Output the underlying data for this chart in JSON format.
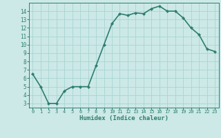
{
  "x": [
    0,
    1,
    2,
    3,
    4,
    5,
    6,
    7,
    8,
    9,
    10,
    11,
    12,
    13,
    14,
    15,
    16,
    17,
    18,
    19,
    20,
    21,
    22,
    23
  ],
  "y": [
    6.5,
    5.0,
    3.0,
    3.0,
    4.5,
    5.0,
    5.0,
    5.0,
    7.5,
    10.0,
    12.5,
    13.7,
    13.5,
    13.8,
    13.7,
    14.3,
    14.6,
    14.0,
    14.0,
    13.2,
    12.0,
    11.2,
    9.5,
    9.2
  ],
  "line_color": "#2e7d6e",
  "marker": "D",
  "marker_size": 2.2,
  "bg_color": "#cce9e7",
  "grid_color": "#a8d4d1",
  "tick_color": "#2e7d6e",
  "xlabel": "Humidex (Indice chaleur)",
  "ylim": [
    2.5,
    15.0
  ],
  "xlim": [
    -0.5,
    23.5
  ],
  "yticks": [
    3,
    4,
    5,
    6,
    7,
    8,
    9,
    10,
    11,
    12,
    13,
    14
  ],
  "xticks": [
    0,
    1,
    2,
    3,
    4,
    5,
    6,
    7,
    8,
    9,
    10,
    11,
    12,
    13,
    14,
    15,
    16,
    17,
    18,
    19,
    20,
    21,
    22,
    23
  ],
  "xtick_labels": [
    "0",
    "1",
    "2",
    "3",
    "4",
    "5",
    "6",
    "7",
    "8",
    "9",
    "10",
    "11",
    "12",
    "13",
    "14",
    "15",
    "16",
    "17",
    "18",
    "19",
    "20",
    "21",
    "22",
    "23"
  ],
  "ytick_labels": [
    "3",
    "4",
    "5",
    "6",
    "7",
    "8",
    "9",
    "10",
    "11",
    "12",
    "13",
    "14"
  ],
  "xlabel_text": "Humidex (Indice chaleur)",
  "linewidth": 1.2,
  "font_family": "monospace"
}
